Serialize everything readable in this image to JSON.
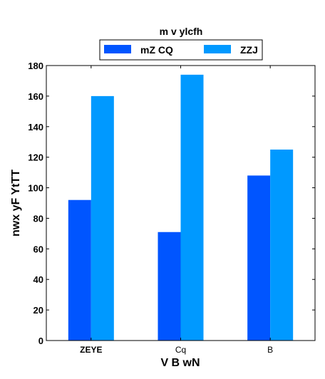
{
  "chart_data": {
    "type": "bar",
    "title": "",
    "xlabel": "V B wN",
    "ylabel": "nwx yF YtTT",
    "categories": [
      "ZEYE",
      "Cq",
      "B"
    ],
    "series": [
      {
        "name": "mZ CQ",
        "values": [
          92,
          71,
          108
        ],
        "color": "#0055ff"
      },
      {
        "name": "ZZJ",
        "values": [
          160,
          174,
          125
        ],
        "color": "#0099ff"
      }
    ],
    "ylim": [
      0,
      180
    ],
    "yticks": [
      0,
      20,
      40,
      60,
      80,
      100,
      120,
      140,
      160,
      180
    ],
    "grid": false,
    "legend": {
      "title": "m v ylcfh",
      "placement": "top-center"
    }
  }
}
